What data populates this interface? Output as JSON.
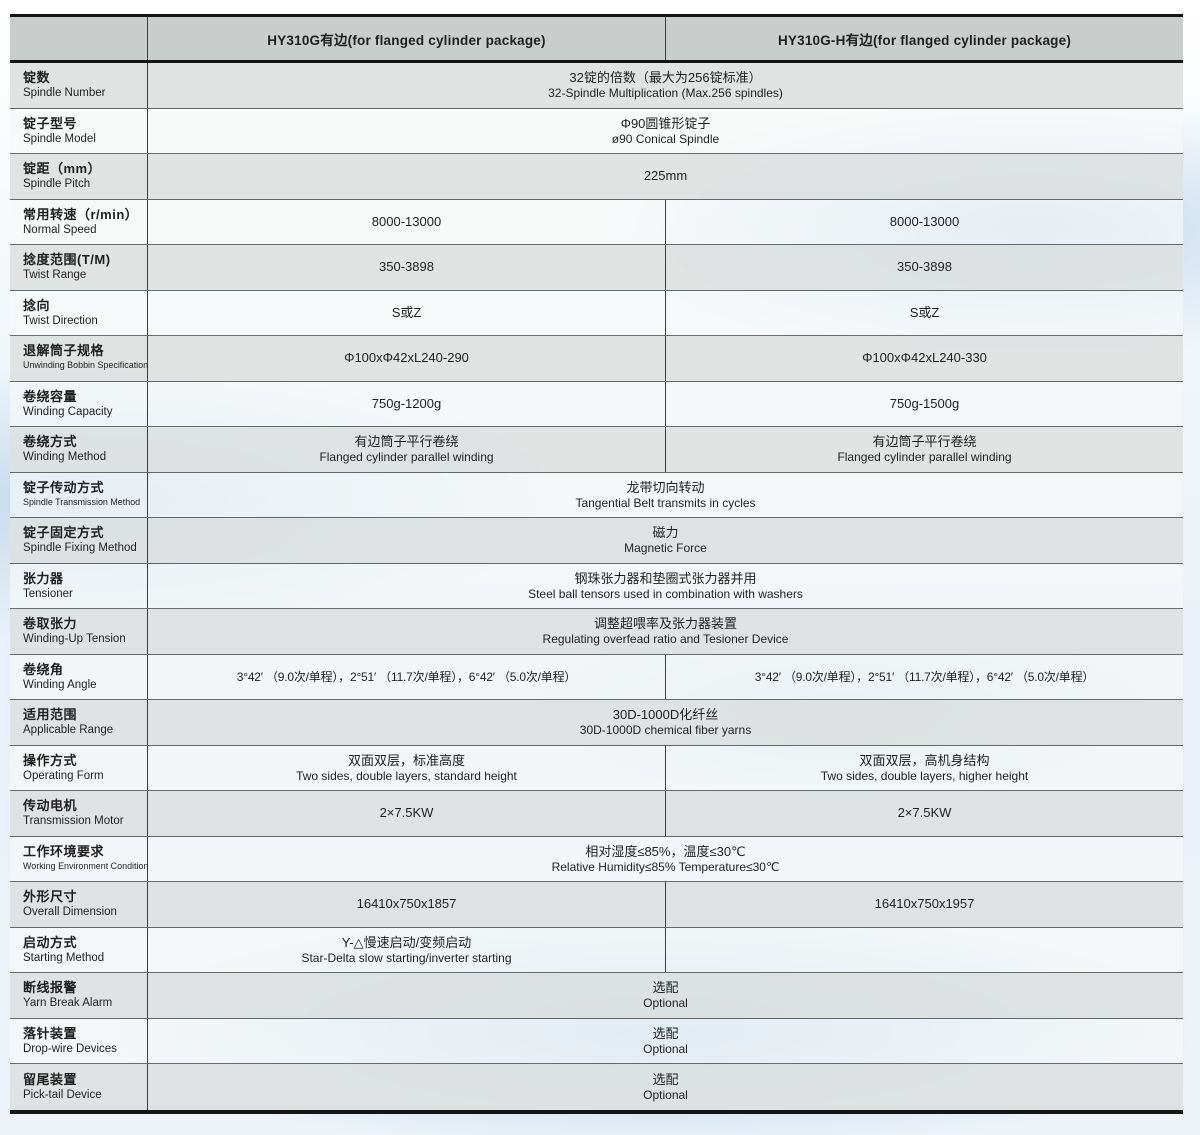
{
  "table": {
    "header": {
      "col1": "HY310G有边(for flanged cylinder package)",
      "col2": "HY310G-H有边(for flanged cylinder package)"
    },
    "rows": [
      {
        "id": "spindle-number",
        "label_zh": "锭数",
        "label_en": "Spindle Number",
        "shade": "gray",
        "type": "span",
        "value": {
          "zh": "32锭的倍数（最大为256锭标准）",
          "en": "32-Spindle Multiplication (Max.256 spindles)"
        }
      },
      {
        "id": "spindle-model",
        "label_zh": "锭子型号",
        "label_en": "Spindle Model",
        "shade": "light",
        "type": "span",
        "value": {
          "zh": "Φ90圆锥形锭子",
          "en": "ø90 Conical Spindle"
        }
      },
      {
        "id": "spindle-pitch",
        "label_zh": "锭距（mm）",
        "label_en": "Spindle Pitch",
        "shade": "gray",
        "type": "span",
        "value": {
          "zh": "225mm",
          "en": ""
        }
      },
      {
        "id": "normal-speed",
        "label_zh": "常用转速（r/min）",
        "label_en": "Normal Speed",
        "shade": "light",
        "type": "cols",
        "col1": {
          "zh": "8000-13000",
          "en": ""
        },
        "col2": {
          "zh": "8000-13000",
          "en": ""
        }
      },
      {
        "id": "twist-range",
        "label_zh": "捻度范围(T/M)",
        "label_en": "Twist Range",
        "shade": "gray",
        "type": "cols",
        "col1": {
          "zh": "350-3898",
          "en": ""
        },
        "col2": {
          "zh": "350-3898",
          "en": ""
        }
      },
      {
        "id": "twist-direction",
        "label_zh": "捻向",
        "label_en": "Twist Direction",
        "shade": "light",
        "type": "cols",
        "col1": {
          "zh": "S或Z",
          "en": ""
        },
        "col2": {
          "zh": "S或Z",
          "en": ""
        }
      },
      {
        "id": "unwinding-bobbin-specification",
        "label_zh": "退解筒子规格",
        "label_en": "Unwinding Bobbin Specification",
        "small_en": true,
        "shade": "gray",
        "type": "cols",
        "col1": {
          "zh": "Φ100xΦ42xL240-290",
          "en": ""
        },
        "col2": {
          "zh": "Φ100xΦ42xL240-330",
          "en": ""
        }
      },
      {
        "id": "winding-capacity",
        "label_zh": "卷绕容量",
        "label_en": "Winding Capacity",
        "shade": "light",
        "type": "cols",
        "col1": {
          "zh": "750g-1200g",
          "en": ""
        },
        "col2": {
          "zh": "750g-1500g",
          "en": ""
        }
      },
      {
        "id": "winding-method",
        "label_zh": "卷绕方式",
        "label_en": "Winding Method",
        "shade": "gray",
        "type": "cols",
        "col1": {
          "zh": "有边筒子平行卷绕",
          "en": "Flanged cylinder parallel winding"
        },
        "col2": {
          "zh": "有边筒子平行卷绕",
          "en": "Flanged cylinder parallel winding"
        }
      },
      {
        "id": "spindle-transmission-method",
        "label_zh": "锭子传动方式",
        "label_en": "Spindle Transmission Method",
        "small_en": true,
        "shade": "light",
        "type": "span",
        "value": {
          "zh": "龙带切向转动",
          "en": "Tangential Belt transmits in cycles"
        }
      },
      {
        "id": "spindle-fixing-method",
        "label_zh": "锭子固定方式",
        "label_en": "Spindle Fixing Method",
        "shade": "gray",
        "type": "span",
        "value": {
          "zh": "磁力",
          "en": "Magnetic Force"
        }
      },
      {
        "id": "tensioner",
        "label_zh": "张力器",
        "label_en": "Tensioner",
        "shade": "light",
        "type": "span",
        "value": {
          "zh": "钢珠张力器和垫圈式张力器并用",
          "en": "Steel ball tensors used in combination with washers"
        }
      },
      {
        "id": "winding-up-tension",
        "label_zh": "卷取张力",
        "label_en": "Winding-Up Tension",
        "shade": "gray",
        "type": "span",
        "value": {
          "zh": "调整超喂率及张力器装置",
          "en": "Regulating overfead ratio and Tesioner Device"
        }
      },
      {
        "id": "winding-angle",
        "label_zh": "卷绕角",
        "label_en": "Winding Angle",
        "shade": "light",
        "type": "cols",
        "col1": {
          "zh": "3°42′ （9.0次/单程），2°51′ （11.7次/单程），6°42′ （5.0次/单程）",
          "en": ""
        },
        "col2": {
          "zh": "3°42′ （9.0次/单程），2°51′ （11.7次/单程），6°42′ （5.0次/单程）",
          "en": ""
        }
      },
      {
        "id": "applicable-range",
        "label_zh": "适用范围",
        "label_en": "Applicable Range",
        "shade": "gray",
        "type": "span",
        "value": {
          "zh": "30D-1000D化纤丝",
          "en": "30D-1000D chemical fiber yarns"
        }
      },
      {
        "id": "operating-form",
        "label_zh": "操作方式",
        "label_en": "Operating Form",
        "shade": "light",
        "type": "cols",
        "col1": {
          "zh": "双面双层，标准高度",
          "en": "Two sides, double layers, standard height"
        },
        "col2": {
          "zh": "双面双层，高机身结构",
          "en": "Two sides, double layers, higher height"
        }
      },
      {
        "id": "transmission-motor",
        "label_zh": "传动电机",
        "label_en": "Transmission Motor",
        "shade": "gray",
        "type": "cols",
        "col1": {
          "zh": "2×7.5KW",
          "en": ""
        },
        "col2": {
          "zh": "2×7.5KW",
          "en": ""
        }
      },
      {
        "id": "working-environment-condition",
        "label_zh": "工作环境要求",
        "label_en": "Working Environment Condition",
        "small_en": true,
        "shade": "light",
        "type": "span",
        "value": {
          "zh": "相对湿度≤85%，温度≤30℃",
          "en": "Relative Humidity≤85%  Temperature≤30℃"
        }
      },
      {
        "id": "overall-dimension",
        "label_zh": "外形尺寸",
        "label_en": "Overall Dimension",
        "shade": "gray",
        "type": "cols",
        "col1": {
          "zh": "16410x750x1857",
          "en": ""
        },
        "col2": {
          "zh": "16410x750x1957",
          "en": ""
        }
      },
      {
        "id": "starting-method",
        "label_zh": "启动方式",
        "label_en": "Starting Method",
        "shade": "light",
        "type": "cols",
        "col1": {
          "zh": "Y-△慢速启动/变频启动",
          "en": "Star-Delta slow starting/inverter starting"
        },
        "col2": {
          "zh": "",
          "en": ""
        }
      },
      {
        "id": "yarn-break-alarm",
        "label_zh": "断线报警",
        "label_en": "Yarn Break Alarm",
        "shade": "gray",
        "type": "span",
        "value": {
          "zh": "选配",
          "en": "Optional"
        }
      },
      {
        "id": "drop-wire-devices",
        "label_zh": "落针装置",
        "label_en": "Drop-wire Devices",
        "shade": "light",
        "type": "span",
        "value": {
          "zh": "选配",
          "en": "Optional"
        }
      },
      {
        "id": "pick-tail-device",
        "label_zh": "留尾装置",
        "label_en": "Pick-tail Device",
        "shade": "gray",
        "type": "span",
        "value": {
          "zh": "选配",
          "en": "Optional"
        }
      }
    ]
  }
}
